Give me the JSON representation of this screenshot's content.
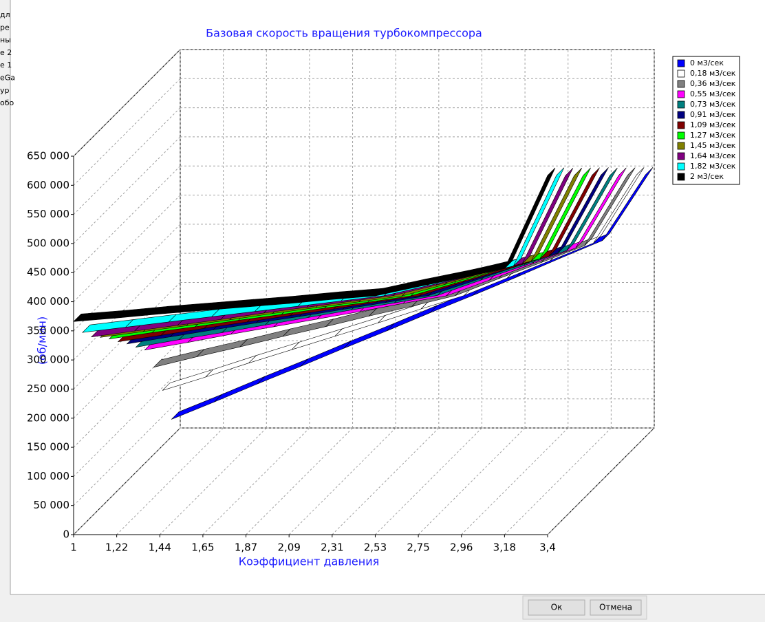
{
  "chart_data": {
    "type": "ribbon3d",
    "title": "Базовая скорость вращения турбокомпрессора",
    "x_label": "Коэффициент давления",
    "y_label": "(об/мин)",
    "categories": [
      "1",
      "1,22",
      "1,44",
      "1,65",
      "1,87",
      "2,09",
      "2,31",
      "2,53",
      "2,75",
      "2,96",
      "3,18",
      "3,4"
    ],
    "ylim": [
      0,
      650000
    ],
    "yticks": [
      {
        "value": 0,
        "label": "0"
      },
      {
        "value": 50000,
        "label": "50 000"
      },
      {
        "value": 100000,
        "label": "100 000"
      },
      {
        "value": 150000,
        "label": "150 000"
      },
      {
        "value": 200000,
        "label": "200 000"
      },
      {
        "value": 250000,
        "label": "250 000"
      },
      {
        "value": 300000,
        "label": "300 000"
      },
      {
        "value": 350000,
        "label": "350 000"
      },
      {
        "value": 400000,
        "label": "400 000"
      },
      {
        "value": 450000,
        "label": "450 000"
      },
      {
        "value": 500000,
        "label": "500 000"
      },
      {
        "value": 550000,
        "label": "550 000"
      },
      {
        "value": 600000,
        "label": "600 000"
      },
      {
        "value": 650000,
        "label": "650 000"
      }
    ],
    "grid": true,
    "series": [
      {
        "name": "0 м3/сек",
        "color": "#0000ff",
        "values": [
          30000,
          60000,
          91000,
          121000,
          152000,
          182000,
          213000,
          243000,
          274000,
          306000,
          337000,
          450000
        ]
      },
      {
        "name": "0,18 м3/сек",
        "color": "#ffffff",
        "values": [
          95000,
          118000,
          142000,
          165000,
          188000,
          211000,
          235000,
          258000,
          288000,
          318000,
          348000,
          465000
        ]
      },
      {
        "name": "0,36 м3/сек",
        "color": "#808080",
        "values": [
          150000,
          168000,
          185000,
          203000,
          220000,
          238000,
          255000,
          273000,
          302000,
          330000,
          359000,
          480000
        ]
      },
      {
        "name": "0,55 м3/сек",
        "color": "#ff00ff",
        "values": [
          195000,
          208000,
          222000,
          235000,
          248000,
          261000,
          275000,
          288000,
          315000,
          343000,
          370000,
          495000
        ]
      },
      {
        "name": "0,73 м3/сек",
        "color": "#008080",
        "values": [
          215000,
          228000,
          240000,
          253000,
          266000,
          279000,
          291000,
          304000,
          330000,
          355000,
          381000,
          510000
        ]
      },
      {
        "name": "0,91 м3/сек",
        "color": "#000080",
        "values": [
          236000,
          248000,
          260000,
          272000,
          283000,
          295000,
          307000,
          319000,
          343000,
          368000,
          392000,
          526000
        ]
      },
      {
        "name": "1,09 м3/сек",
        "color": "#800000",
        "values": [
          255000,
          266000,
          278000,
          289000,
          300000,
          311000,
          323000,
          334000,
          357000,
          379000,
          402000,
          541000
        ]
      },
      {
        "name": "1,27 м3/сек",
        "color": "#00ff00",
        "values": [
          275000,
          286000,
          296000,
          307000,
          317000,
          328000,
          338000,
          349000,
          370000,
          392000,
          413000,
          556000
        ]
      },
      {
        "name": "1,45 м3/сек",
        "color": "#808000",
        "values": [
          293000,
          303000,
          313000,
          323000,
          334000,
          344000,
          354000,
          364000,
          384000,
          404000,
          424000,
          571000
        ]
      },
      {
        "name": "1,64 м3/сек",
        "color": "#800080",
        "values": [
          309000,
          319000,
          329000,
          339000,
          350000,
          360000,
          370000,
          380000,
          398000,
          417000,
          435000,
          586000
        ]
      },
      {
        "name": "1,82 м3/сек",
        "color": "#00ffff",
        "values": [
          332000,
          341000,
          350000,
          359000,
          368000,
          377000,
          386000,
          395000,
          412000,
          429000,
          446000,
          602000
        ]
      },
      {
        "name": "2 м3/сек",
        "color": "#000000",
        "values": [
          366000,
          372000,
          379000,
          385000,
          391000,
          397000,
          404000,
          410000,
          426000,
          441000,
          457000,
          617000
        ]
      }
    ]
  },
  "ui": {
    "sidebar": [
      "дл",
      "ре",
      "ны",
      "е 2",
      "е 1",
      "eGa",
      "ур",
      "обо"
    ],
    "buttons": [
      "Ок",
      "Отмена"
    ]
  }
}
